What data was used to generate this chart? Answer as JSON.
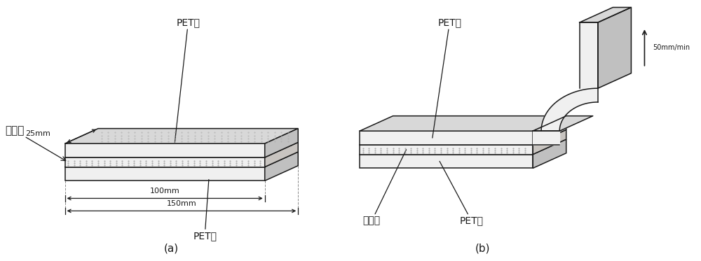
{
  "bg_color": "#ffffff",
  "line_color": "#1a1a1a",
  "label_a": "(a)",
  "label_b": "(b)",
  "pet_label": "PET膜",
  "adhesive_label": "粘合膜",
  "dim_25mm": "25mm",
  "dim_100mm": "100mm",
  "dim_150mm": "150mm",
  "speed_label": "50mm/min",
  "font_size_labels": 10,
  "font_size_dim": 8,
  "font_size_caption": 11
}
